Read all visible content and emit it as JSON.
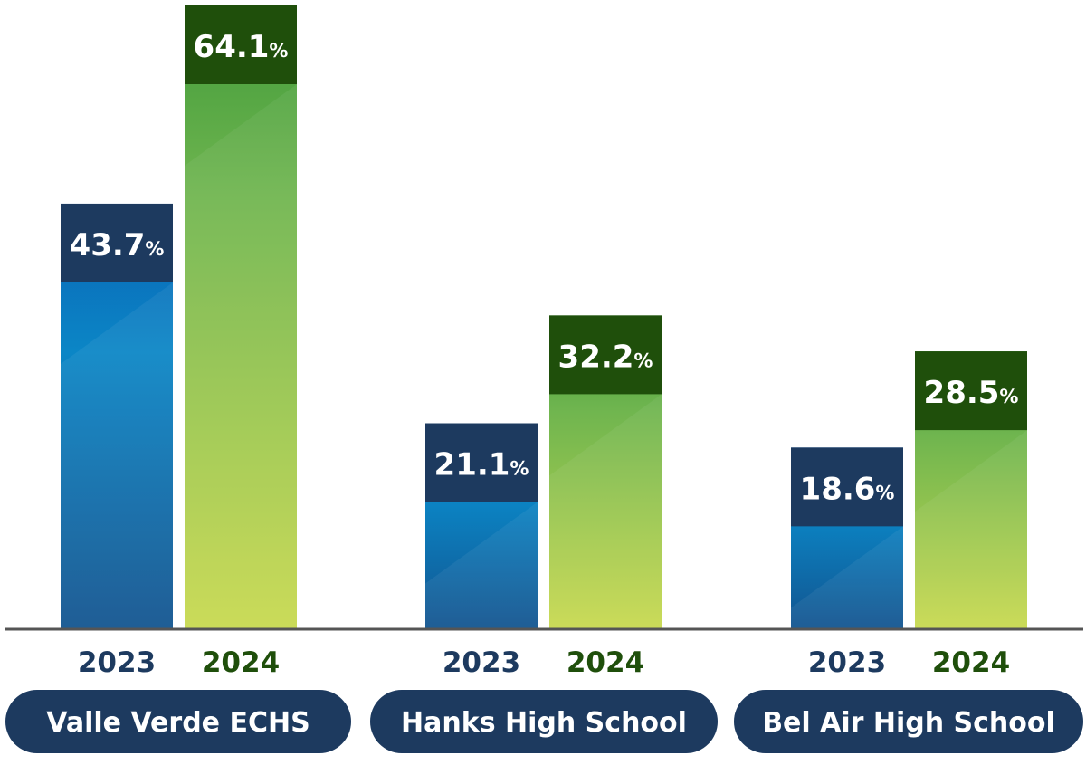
{
  "colors": {
    "navy": "#1d3a5f",
    "dark_green": "#1f4f0b",
    "blue_top": "#0b63b8",
    "blue_bottom": "#0e6aa6",
    "green_top": "#3f9a3a",
    "green_bottom": "#c6d94f",
    "baseline": "#555555"
  },
  "chart_data": {
    "type": "bar",
    "categories": [
      "Valle Verde ECHS",
      "Hanks High School",
      "Bel Air High School"
    ],
    "series": [
      {
        "name": "2023",
        "values": [
          43.7,
          21.1,
          18.6
        ]
      },
      {
        "name": "2024",
        "values": [
          64.1,
          32.2,
          28.5
        ]
      }
    ],
    "value_suffix": "%",
    "ylim": [
      0,
      64.1
    ],
    "grid": false,
    "axes": "baseline-only",
    "title": "",
    "xlabel": "",
    "ylabel": ""
  }
}
